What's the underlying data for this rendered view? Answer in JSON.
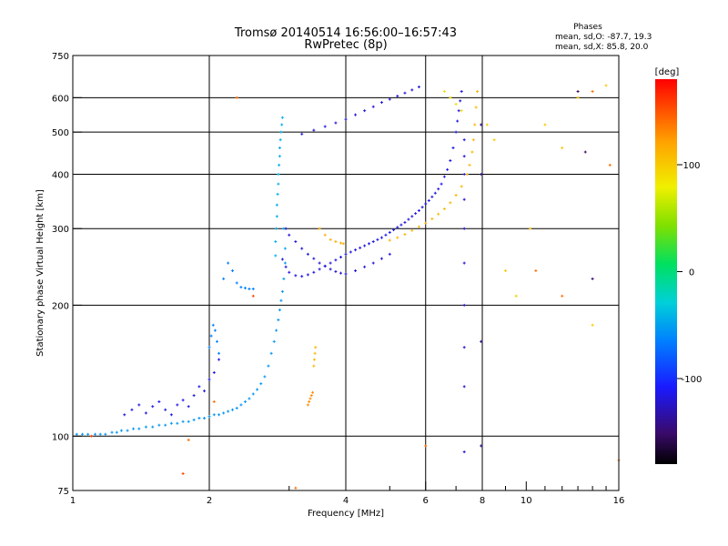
{
  "chart_data": {
    "type": "scatter",
    "title": "Tromsø 20140514 16:56:00–16:57:43",
    "subtitle": "RwPretec (8p)",
    "xlabel": "Frequency [MHz]",
    "ylabel": "Stationary phase Virtual Height [km]",
    "x_scale": "log",
    "y_scale": "log",
    "xlim": [
      1,
      16
    ],
    "ylim": [
      75,
      750
    ],
    "x_ticks": [
      1,
      2,
      4,
      6,
      8,
      10,
      16
    ],
    "x_tick_labels": [
      "1",
      "2",
      "4",
      "6",
      "8",
      "10",
      "16"
    ],
    "y_ticks": [
      75,
      100,
      200,
      300,
      400,
      500,
      600,
      750
    ],
    "y_tick_labels": [
      "75",
      "100",
      "200",
      "300",
      "400",
      "500",
      "600",
      "750"
    ],
    "grid": true,
    "phase_stats": {
      "title": "Phases",
      "line_o": "mean, sd,O: -87.7, 19.3",
      "line_x": "mean, sd,X:  85.8, 20.0"
    },
    "colorbar": {
      "label": "[deg]",
      "range": [
        -180,
        180
      ],
      "ticks": [
        100,
        0,
        -100
      ],
      "tick_labels": [
        "100",
        "0",
        "-100"
      ]
    },
    "series": [
      {
        "x": [
          1.02,
          1.05,
          1.08,
          1.12,
          1.15,
          1.18,
          1.22,
          1.25,
          1.28,
          1.32,
          1.36,
          1.4,
          1.45,
          1.5,
          1.55,
          1.6,
          1.65,
          1.7,
          1.75,
          1.8,
          1.85,
          1.9,
          1.95,
          2.0,
          2.05,
          2.1,
          2.15,
          2.2,
          2.25,
          2.3,
          2.35,
          2.4,
          2.45,
          2.5,
          2.55,
          2.6,
          2.65,
          2.7,
          2.74,
          2.78,
          2.81,
          2.84,
          2.86,
          2.88,
          2.9,
          2.92,
          2.94
        ],
        "y": [
          101,
          101,
          101,
          101,
          101,
          101,
          102,
          102,
          103,
          103,
          104,
          104,
          105,
          105,
          106,
          106,
          107,
          107,
          108,
          108,
          109,
          110,
          110,
          111,
          112,
          112,
          113,
          114,
          115,
          116,
          118,
          120,
          122,
          125,
          128,
          132,
          137,
          145,
          155,
          165,
          175,
          185,
          195,
          205,
          215,
          230,
          250
        ],
        "phase": -55
      },
      {
        "x": [
          2.8,
          2.8,
          2.81,
          2.82,
          2.82,
          2.83,
          2.84,
          2.84,
          2.85,
          2.86,
          2.86,
          2.87,
          2.88,
          2.89,
          2.9,
          2.92,
          2.94
        ],
        "y": [
          260,
          280,
          300,
          320,
          340,
          360,
          380,
          400,
          420,
          440,
          460,
          480,
          500,
          520,
          540,
          300,
          270
        ],
        "phase": -45
      },
      {
        "x": [
          1.3,
          1.35,
          1.4,
          1.45,
          1.5,
          1.55,
          1.6,
          1.65,
          1.7,
          1.75,
          1.8,
          1.85,
          1.9,
          1.95,
          2.0,
          2.05,
          2.1
        ],
        "y": [
          112,
          115,
          118,
          113,
          117,
          120,
          115,
          112,
          118,
          121,
          117,
          124,
          130,
          127,
          135,
          140,
          150
        ],
        "phase": -115
      },
      {
        "x": [
          2.0,
          2.02,
          2.04,
          2.06,
          2.08,
          2.1,
          2.15,
          2.2,
          2.25,
          2.3,
          2.35,
          2.4,
          2.45,
          2.5
        ],
        "y": [
          160,
          170,
          180,
          175,
          165,
          155,
          230,
          250,
          240,
          225,
          220,
          219,
          218,
          218
        ],
        "phase": -65
      },
      {
        "x": [
          2.9,
          2.95,
          3.0,
          3.1,
          3.2,
          3.3,
          3.4,
          3.5,
          3.6,
          3.7,
          3.8,
          3.9,
          4.0,
          4.1,
          4.2,
          4.3,
          4.4,
          4.5,
          4.6,
          4.7,
          4.8,
          4.9,
          5.0,
          5.1,
          5.2,
          5.3,
          5.4,
          5.5,
          5.6,
          5.7,
          5.8,
          5.9,
          6.0,
          6.1,
          6.2,
          6.3,
          6.4,
          6.5,
          6.6,
          6.7,
          6.8,
          6.9,
          7.0,
          7.05,
          7.1,
          7.15,
          7.2
        ],
        "y": [
          255,
          245,
          238,
          234,
          233,
          235,
          238,
          242,
          246,
          250,
          254,
          258,
          262,
          265,
          268,
          271,
          274,
          277,
          280,
          283,
          286,
          290,
          294,
          298,
          302,
          306,
          310,
          315,
          320,
          325,
          330,
          336,
          342,
          348,
          355,
          362,
          370,
          380,
          395,
          410,
          430,
          460,
          500,
          530,
          560,
          590,
          620
        ],
        "phase": -115
      },
      {
        "x": [
          2.95,
          3.0,
          3.1,
          3.2,
          3.3,
          3.4,
          3.5,
          3.6,
          3.7,
          3.8,
          3.9,
          4.0,
          4.2,
          4.4,
          4.6,
          4.8,
          5.0
        ],
        "y": [
          300,
          290,
          280,
          270,
          262,
          256,
          250,
          246,
          242,
          239,
          237,
          236,
          240,
          245,
          250,
          256,
          262
        ],
        "phase": -120
      },
      {
        "x": [
          5.0,
          5.2,
          5.4,
          5.6,
          5.8,
          6.0,
          6.2,
          6.4,
          6.6,
          6.8,
          7.0,
          7.2,
          7.4,
          7.5,
          7.6,
          7.65,
          7.7,
          7.75,
          7.8
        ],
        "y": [
          282,
          286,
          291,
          297,
          303,
          309,
          316,
          324,
          333,
          344,
          358,
          375,
          400,
          420,
          450,
          480,
          520,
          570,
          620
        ],
        "phase": 110
      },
      {
        "x": [
          3.5,
          3.6,
          3.7,
          3.8,
          3.9,
          3.95
        ],
        "y": [
          300,
          290,
          283,
          280,
          278,
          277
        ],
        "phase": 115
      },
      {
        "x": [
          3.2,
          3.4,
          3.6,
          3.8,
          4.0,
          4.2,
          4.4,
          4.6,
          4.8,
          5.0,
          5.2,
          5.4,
          5.6,
          5.8
        ],
        "y": [
          495,
          505,
          515,
          525,
          535,
          548,
          560,
          572,
          585,
          595,
          605,
          615,
          625,
          635
        ],
        "phase": -118
      },
      {
        "x": [
          3.3,
          3.32,
          3.34,
          3.36,
          3.38
        ],
        "y": [
          118,
          120,
          122,
          124,
          126
        ],
        "phase": 130
      },
      {
        "x": [
          3.4,
          3.41,
          3.42,
          3.43
        ],
        "y": [
          145,
          150,
          155,
          160
        ],
        "phase": 110
      },
      {
        "x": [
          7.3,
          7.3,
          7.3,
          7.3,
          7.3,
          7.3,
          7.3,
          7.3,
          7.3,
          7.3
        ],
        "y": [
          480,
          440,
          400,
          350,
          300,
          250,
          200,
          160,
          130,
          92
        ],
        "phase": -120
      },
      {
        "x": [
          7.95,
          7.95,
          7.95,
          7.95
        ],
        "y": [
          520,
          400,
          165,
          95
        ],
        "phase": -140
      },
      {
        "x": [
          6.6,
          6.8,
          7.0,
          7.2
        ],
        "y": [
          620,
          600,
          580,
          560
        ],
        "phase": 90
      },
      {
        "x": [
          8.2,
          8.5,
          9.0,
          9.5,
          10.2,
          11.0,
          12.0,
          13.0,
          14.0,
          15.0
        ],
        "y": [
          520,
          480,
          240,
          210,
          300,
          520,
          460,
          600,
          180,
          640
        ],
        "phase": 100
      },
      {
        "x": [
          1.8,
          2.05,
          2.3,
          3.1,
          6.0,
          10.5,
          12.0,
          14.0,
          15.3,
          16.0
        ],
        "y": [
          98,
          120,
          600,
          76,
          95,
          240,
          210,
          620,
          420,
          88
        ],
        "phase": 140
      },
      {
        "x": [
          13.0,
          13.5,
          14.0
        ],
        "y": [
          620,
          450,
          230
        ],
        "phase": -150
      },
      {
        "x": [
          1.75,
          1.1,
          2.5
        ],
        "y": [
          82,
          100,
          210
        ],
        "phase": 155
      }
    ]
  }
}
